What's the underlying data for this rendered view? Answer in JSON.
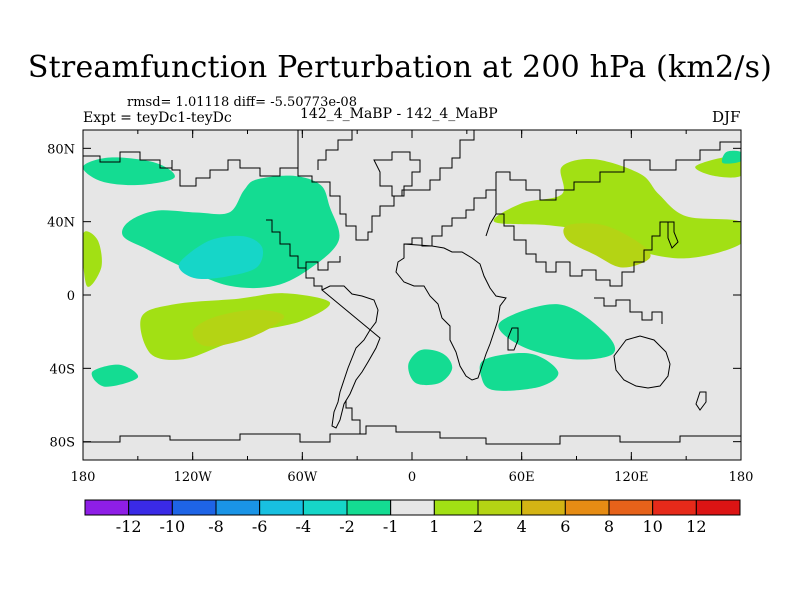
{
  "title": "Streamfunction Perturbation at 200 hPa (km2/s)",
  "stats_text": "rmsd= 1.01118 diff= -5.50773e-08",
  "left_label": "Expt = teyDc1-teyDc",
  "center_label": "142_4_MaBP - 142_4_MaBP",
  "right_label": "DJF",
  "map": {
    "projection": "cylindrical equidistant",
    "lon_range": [
      -180,
      180
    ],
    "lat_range": [
      -90,
      90
    ],
    "x_tick_labels": [
      "180",
      "120W",
      "60W",
      "0",
      "60E",
      "120E",
      "180"
    ],
    "y_tick_labels": [
      "80N",
      "40N",
      "0",
      "40S",
      "80S"
    ],
    "background_color": "#e6e6e6",
    "coastline_color": "#000000"
  },
  "colorbar": {
    "labels": [
      "-12",
      "-10",
      "-8",
      "-6",
      "-4",
      "-2",
      "-1",
      "1",
      "2",
      "4",
      "6",
      "8",
      "10",
      "12"
    ],
    "colors": [
      "#8e1ee6",
      "#3a2ae6",
      "#1e64e6",
      "#1a94e6",
      "#18c0e0",
      "#16d6c8",
      "#14dc92",
      "#e6e6e6",
      "#a2e014",
      "#b4d414",
      "#d4b414",
      "#e68c14",
      "#e6621a",
      "#e62a1a",
      "#dc1414"
    ]
  },
  "chart_data": {
    "type": "heatmap",
    "title": "Streamfunction Perturbation at 200 hPa (km2/s)",
    "xlabel": "",
    "ylabel": "",
    "x_ticks": [
      "180",
      "120W",
      "60W",
      "0",
      "60E",
      "120E",
      "180"
    ],
    "y_ticks": [
      "80N",
      "40N",
      "0",
      "40S",
      "80S"
    ],
    "contour_levels": [
      -12,
      -10,
      -8,
      -6,
      -4,
      -2,
      -1,
      1,
      2,
      4,
      6,
      8,
      10,
      12
    ],
    "regions": [
      {
        "name": "arctic-west-negative",
        "color": "#14dc92",
        "points": [
          [
            -180,
            70
          ],
          [
            -170,
            62
          ],
          [
            -150,
            60
          ],
          [
            -130,
            64
          ],
          [
            -140,
            72
          ],
          [
            -165,
            75
          ]
        ]
      },
      {
        "name": "north-pacific-negative",
        "color": "#14dc92",
        "points": [
          [
            -155,
            40
          ],
          [
            -140,
            46
          ],
          [
            -118,
            45
          ],
          [
            -100,
            45
          ],
          [
            -92,
            57
          ],
          [
            -85,
            63
          ],
          [
            -65,
            65
          ],
          [
            -50,
            60
          ],
          [
            -45,
            48
          ],
          [
            -40,
            30
          ],
          [
            -55,
            15
          ],
          [
            -75,
            5
          ],
          [
            -100,
            5
          ],
          [
            -125,
            15
          ],
          [
            -145,
            25
          ],
          [
            -158,
            32
          ]
        ]
      },
      {
        "name": "north-america-negative-core",
        "color": "#16d6c8",
        "points": [
          [
            -125,
            20
          ],
          [
            -110,
            30
          ],
          [
            -92,
            32
          ],
          [
            -82,
            26
          ],
          [
            -85,
            15
          ],
          [
            -102,
            10
          ],
          [
            -118,
            9
          ],
          [
            -127,
            14
          ]
        ]
      },
      {
        "name": "east-pacific-positive",
        "color": "#a2e014",
        "points": [
          [
            -180,
            33
          ],
          [
            -172,
            30
          ],
          [
            -170,
            15
          ],
          [
            -178,
            5
          ]
        ]
      },
      {
        "name": "tropical-pacific-positive",
        "color": "#a2e014",
        "points": [
          [
            -148,
            -12
          ],
          [
            -130,
            -5
          ],
          [
            -95,
            -2
          ],
          [
            -70,
            1
          ],
          [
            -45,
            -4
          ],
          [
            -60,
            -14
          ],
          [
            -85,
            -20
          ],
          [
            -105,
            -28
          ],
          [
            -125,
            -35
          ],
          [
            -143,
            -32
          ]
        ]
      },
      {
        "name": "tropical-pacific-positive-core",
        "color": "#b4d414",
        "points": [
          [
            -120,
            -20
          ],
          [
            -108,
            -12
          ],
          [
            -85,
            -8
          ],
          [
            -70,
            -12
          ],
          [
            -88,
            -23
          ],
          [
            -112,
            -28
          ]
        ]
      },
      {
        "name": "south-pacific-negative",
        "color": "#14dc92",
        "points": [
          [
            -175,
            -42
          ],
          [
            -160,
            -38
          ],
          [
            -150,
            -45
          ],
          [
            -168,
            -50
          ]
        ]
      },
      {
        "name": "africa-negative",
        "color": "#14dc92",
        "points": [
          [
            -2,
            -38
          ],
          [
            5,
            -30
          ],
          [
            17,
            -32
          ],
          [
            22,
            -40
          ],
          [
            15,
            -48
          ],
          [
            2,
            -48
          ]
        ]
      },
      {
        "name": "asia-positive",
        "color": "#a2e014",
        "points": [
          [
            45,
            40
          ],
          [
            75,
            38
          ],
          [
            100,
            34
          ],
          [
            120,
            25
          ],
          [
            150,
            20
          ],
          [
            180,
            28
          ],
          [
            180,
            40
          ],
          [
            150,
            43
          ],
          [
            135,
            55
          ],
          [
            125,
            66
          ],
          [
            100,
            74
          ],
          [
            82,
            70
          ],
          [
            82,
            55
          ],
          [
            60,
            50
          ]
        ]
      },
      {
        "name": "asia-positive-core",
        "color": "#b4d414",
        "points": [
          [
            85,
            38
          ],
          [
            105,
            38
          ],
          [
            125,
            28
          ],
          [
            130,
            20
          ],
          [
            115,
            15
          ],
          [
            100,
            22
          ],
          [
            85,
            30
          ]
        ]
      },
      {
        "name": "indian-ocean-negative",
        "color": "#14dc92",
        "points": [
          [
            48,
            -15
          ],
          [
            80,
            -5
          ],
          [
            105,
            -20
          ],
          [
            110,
            -32
          ],
          [
            88,
            -35
          ],
          [
            60,
            -28
          ]
        ]
      },
      {
        "name": "south-indian-negative",
        "color": "#14dc92",
        "points": [
          [
            40,
            -35
          ],
          [
            65,
            -32
          ],
          [
            80,
            -42
          ],
          [
            70,
            -50
          ],
          [
            45,
            -52
          ],
          [
            38,
            -45
          ]
        ]
      },
      {
        "name": "east-asia-positive",
        "color": "#a2e014",
        "points": [
          [
            155,
            70
          ],
          [
            170,
            75
          ],
          [
            180,
            75
          ],
          [
            180,
            65
          ],
          [
            165,
            65
          ]
        ]
      },
      {
        "name": "arctic-east-negative",
        "color": "#14dc92",
        "points": [
          [
            172,
            78
          ],
          [
            180,
            78
          ],
          [
            180,
            73
          ],
          [
            170,
            72
          ]
        ]
      }
    ]
  }
}
